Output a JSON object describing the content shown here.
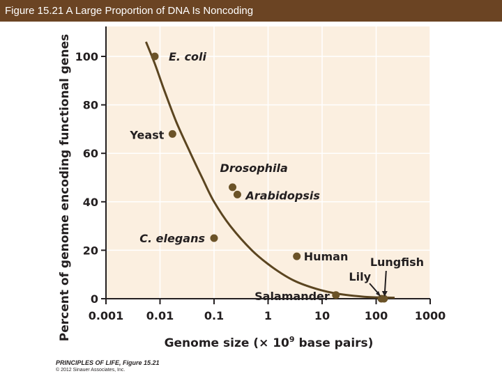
{
  "header": {
    "title": "Figure 15.21 A Large Proportion of DNA Is Noncoding"
  },
  "colors": {
    "title_bar": "#6b4423",
    "plot_background": "#fbefe0",
    "curve": "#5b4520",
    "point": "#6b5328",
    "axis": "#231f20"
  },
  "chart_data": {
    "type": "scatter",
    "title": "",
    "xlabel_main": "Genome size (× 10",
    "xlabel_sup": "9",
    "xlabel_end": " base pairs)",
    "ylabel": "Percent of genome encoding functional genes",
    "xscale": "log",
    "xlim": [
      0.001,
      1000
    ],
    "ylim": [
      0,
      110
    ],
    "xticks": [
      0.001,
      0.01,
      0.1,
      1,
      10,
      100,
      1000
    ],
    "xtick_labels": [
      "0.001",
      "0.01",
      "0.1",
      "1",
      "10",
      "100",
      "1000"
    ],
    "yticks": [
      0,
      20,
      40,
      60,
      80,
      100
    ],
    "ytick_labels": [
      "0",
      "20",
      "40",
      "60",
      "80",
      "100"
    ],
    "points": [
      {
        "name": "E. coli",
        "x": 0.008,
        "y": 100,
        "italic": true
      },
      {
        "name": "Yeast",
        "x": 0.017,
        "y": 68,
        "italic": false
      },
      {
        "name": "Drosophila",
        "x": 0.22,
        "y": 46,
        "italic": true
      },
      {
        "name": "Arabidopsis",
        "x": 0.27,
        "y": 43,
        "italic": true
      },
      {
        "name": "C. elegans",
        "x": 0.1,
        "y": 25,
        "italic": true
      },
      {
        "name": "Human",
        "x": 3.4,
        "y": 17.5,
        "italic": false
      },
      {
        "name": "Salamander",
        "x": 18,
        "y": 1.5,
        "italic": false
      },
      {
        "name": "Lily",
        "x": 125,
        "y": 0,
        "italic": false
      },
      {
        "name": "Lungfish",
        "x": 140,
        "y": 0,
        "italic": false
      }
    ],
    "trend_curve": {
      "x": [
        0.0055,
        0.008,
        0.012,
        0.02,
        0.035,
        0.06,
        0.1,
        0.2,
        0.5,
        1.2,
        3,
        8,
        20,
        60,
        140,
        220
      ],
      "y": [
        106,
        97,
        86,
        73,
        61,
        50,
        40,
        30,
        20,
        13,
        7.5,
        4,
        2,
        0.8,
        0.5,
        0.4
      ]
    }
  },
  "footer": {
    "book": "PRINCIPLES OF LIFE, Figure 15.21",
    "copyright": "© 2012 Sinauer Associates, Inc."
  }
}
